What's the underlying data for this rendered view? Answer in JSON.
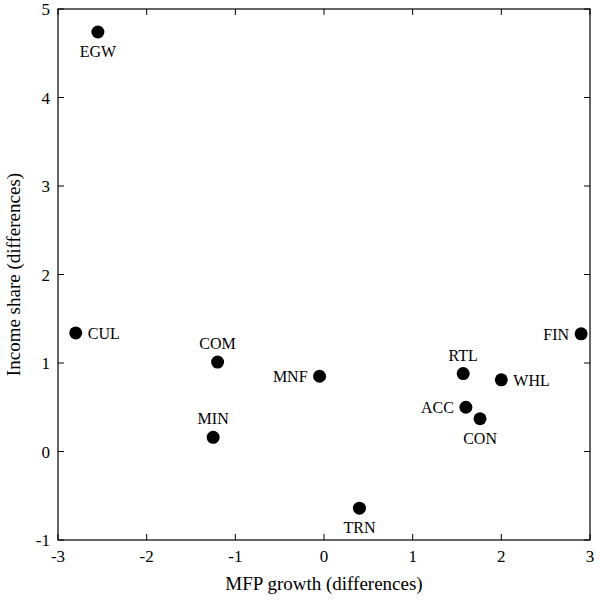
{
  "chart_data": {
    "type": "scatter",
    "x_label": "MFP growth (differences)",
    "y_label": "Income share (differences)",
    "labels": [
      "EGW",
      "CUL",
      "COM",
      "MIN",
      "MNF",
      "TRN",
      "RTL",
      "ACC",
      "CON",
      "WHL",
      "FIN"
    ],
    "x": [
      -2.55,
      -2.8,
      -1.2,
      -1.25,
      -0.05,
      0.4,
      1.57,
      1.6,
      1.76,
      2.0,
      2.9
    ],
    "values": [
      4.74,
      1.34,
      1.01,
      0.16,
      0.85,
      -0.64,
      0.88,
      0.5,
      0.37,
      0.81,
      1.33
    ],
    "color": "#000000",
    "marker": "circle",
    "xlim": [
      -3,
      3
    ],
    "xticks": [
      -3,
      -2,
      -1,
      0,
      1,
      2,
      3
    ],
    "ylim": [
      -1,
      5
    ],
    "yticks": [
      -1,
      0,
      1,
      2,
      3,
      4,
      5
    ],
    "grid": false
  }
}
